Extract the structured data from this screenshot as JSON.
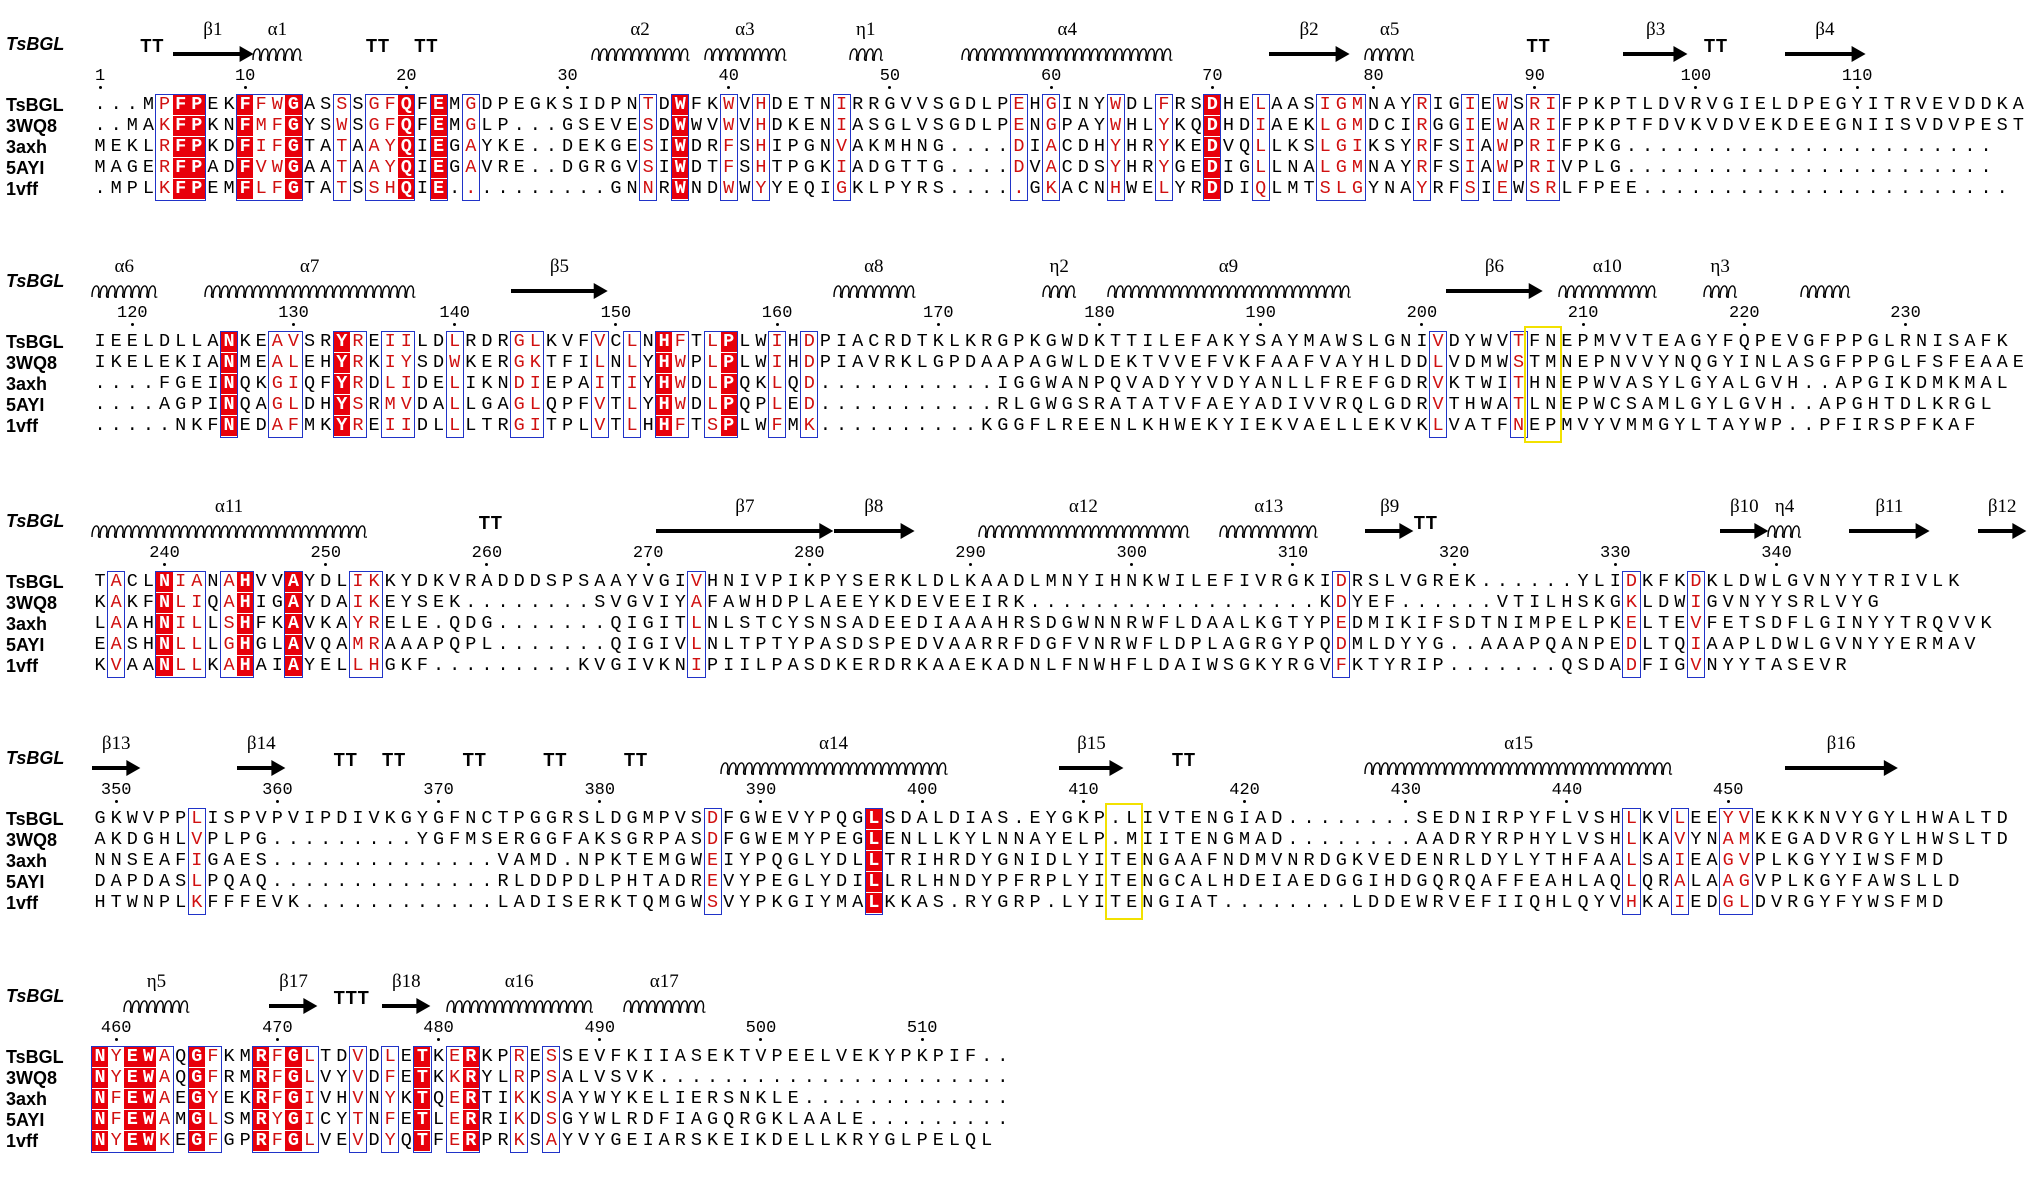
{
  "protein_label": "TsBGL",
  "blocks": [
    {
      "start": 0,
      "numbers": [
        1,
        10,
        20,
        30,
        40,
        50,
        60,
        70,
        80,
        90,
        100,
        110
      ],
      "sequences": [
        {
          "name": "TsBGL",
          "seq": "...MPFPEKFFWGASSSGFQFEMGDPEGKSIDPNTDWFKWVHDETNIRRGVVSGDLPEHGINYWDLFRSDHELAASIGMNAYRIGIEWSRIFPKPTLDVRVGIELDPEGYITRVEVDDKA"
        },
        {
          "name": "3WQ8",
          "seq": "..MAKFPKNFMFGYSWSGFQFEMGLP...GSEVESDWWVWVHDKENIASGLVSGDLPENGPAYWHLYKQDHDIAEKLGMDCIRGGIEWARIFPKPTFDVKVDVEKDEEGNIISVDVPEST"
        },
        {
          "name": "3axh",
          "seq": "MEKLRFPKDFIFGTATAAYQIEGAYKE..DEKGESIWDRFSHIPGNVAKMHNG....DIACDHYHRYKEDVQLLKSLGIKSYRFSIAWPRIFPKG......................."
        },
        {
          "name": "5AYI",
          "seq": "MAGERFPADFVWGAATAAYQIEGAVRE..DGRGVSIWDTFSHTPGKIADGTTG....DVACDSYHRYGEDIGLLNALGMNAYRFSIAWPRIVPLG......................."
        },
        {
          "name": "1vff",
          "seq": ".MPLKFPEMFLFGTATSSHQIE..........GNNRWNDWWYYEQIGKLPYRS.....GKACNHWELYRDDIQLMTSLGYNAYRFSIEWSRLFPEE......................."
        }
      ],
      "ss": [
        {
          "type": "TT",
          "label": "TT",
          "pos": 3
        },
        {
          "type": "arrow",
          "label": "β1",
          "start": 5,
          "end": 9
        },
        {
          "type": "helix",
          "label": "α1",
          "start": 10,
          "end": 12
        },
        {
          "type": "TT",
          "label": "TT",
          "pos": 17
        },
        {
          "type": "TT",
          "label": "TT",
          "pos": 20
        },
        {
          "type": "helix",
          "label": "α2",
          "start": 31,
          "end": 36
        },
        {
          "type": "helix",
          "label": "α3",
          "start": 38,
          "end": 42
        },
        {
          "type": "helix",
          "label": "η1",
          "start": 47,
          "end": 48
        },
        {
          "type": "helix",
          "label": "α4",
          "start": 54,
          "end": 66
        },
        {
          "type": "arrow",
          "label": "β2",
          "start": 73,
          "end": 77
        },
        {
          "type": "helix",
          "label": "α5",
          "start": 79,
          "end": 81
        },
        {
          "type": "TT",
          "label": "TT",
          "pos": 89
        },
        {
          "type": "arrow",
          "label": "β3",
          "start": 95,
          "end": 98
        },
        {
          "type": "TT",
          "label": "TT",
          "pos": 100
        },
        {
          "type": "arrow",
          "label": "β4",
          "start": 105,
          "end": 109
        }
      ],
      "highlights": []
    },
    {
      "start": 117,
      "numbers": [
        120,
        130,
        140,
        150,
        160,
        170,
        180,
        190,
        200,
        210,
        220,
        230
      ],
      "sequences": [
        {
          "name": "TsBGL",
          "seq": "IEELDLLANKEAVSRYREIILDLRDRGLKVFVCLNHFTLPLWIHDPIACRDTKLKRGPKGWDKTTILEFAKYSAYMAWSLGNIVDYWVTFNEPMVVTEAGYFQPEVGFPPGLRNISAFK"
        },
        {
          "name": "3WQ8",
          "seq": "IKELEKIANMEALEHYRKIYSDWKERGKTFILNLYHWPLPLWIHDPIAVRKLGPDAAPAGWLDEKTVVEFVKFAAFVAYHLDDLVDMWSTMNEPNVVYNQGYINLASGFPPGLFSFEAAE"
        },
        {
          "name": "3axh",
          "seq": "....FGEINQKGIQFYRDLIDELIKNDIEPAITIYHWDLPQKLQD...........IGGWANPQVADYYVDYANLLFREFGDRVKTWITHNEPWVASYLGYALGVH..APGIKDMKMAL"
        },
        {
          "name": "5AYI",
          "seq": "....AGPINQAGLDHYSRMVDALLGAGLQPFVTLYHWDLPQPLED...........RLGWGSRATATVFAEYADIVVRQLGDRVTHWATLNEPWCSAMLGYLGVH..APGHTDLKRGL"
        },
        {
          "name": "1vff",
          "seq": ".....NKFNEDAFMKYREIIDLLLTRGITPLVTLHHFTSPLWFMK..........KGGFLREENLKHWEKYIEKVAELLEKVKLVATFNEPMVYVMMGYLTAYWP..PFIRSPFKAF"
        }
      ],
      "ss": [
        {
          "type": "helix",
          "label": "α6",
          "start": 0,
          "end": 3
        },
        {
          "type": "helix",
          "label": "α7",
          "start": 7,
          "end": 19
        },
        {
          "type": "arrow",
          "label": "β5",
          "start": 26,
          "end": 31
        },
        {
          "type": "helix",
          "label": "α8",
          "start": 46,
          "end": 50
        },
        {
          "type": "helix",
          "label": "η2",
          "start": 59,
          "end": 60
        },
        {
          "type": "helix",
          "label": "α9",
          "start": 63,
          "end": 77
        },
        {
          "type": "arrow",
          "label": "β6",
          "start": 84,
          "end": 89
        },
        {
          "type": "helix",
          "label": "α10",
          "start": 91,
          "end": 96
        },
        {
          "type": "helix",
          "label": "η3",
          "start": 100,
          "end": 101
        },
        {
          "type": "helix",
          "label": "",
          "start": 106,
          "end": 108
        }
      ],
      "highlights": [
        {
          "start": 89,
          "end": 90
        }
      ]
    },
    {
      "start": 235,
      "numbers": [
        240,
        250,
        260,
        270,
        280,
        290,
        300,
        310,
        320,
        330,
        340
      ],
      "sequences": [
        {
          "name": "TsBGL",
          "seq": "TACLNIANAHVVAYDLIKKYDKVRADDDSPSAAYVGIVHNIVPIKPYSERKLDLKAADLMNYIHNKWILEFIVRGKIDRSLVGREK......YLIDKFKDKLDWLGVNYYTRIVLK"
        },
        {
          "name": "3WQ8",
          "seq": "KAKFNLIQAHIGAYDAIKEYSEK........SVGVIYAFAWHDPLAEEYKDEVEEIRK..................KDYEF......VTILHSKGKLDWIGVNYYSRLVYG"
        },
        {
          "name": "3axh",
          "seq": "LAAHNILLSHFKAVKAYRELE.QDG.......QIGITLNLSTCYSNSADEEDIAAAHRSDGWNNRWFLDAALKGTYPEDMIKIFSDTNIMPELPKELTEVFETSDFLGINYYTRQVVK"
        },
        {
          "name": "5AYI",
          "seq": "EASHNLLLGHGLAVQAMRAAAPQPL.......QIGIVLNLTPTYPASDSPEDVAARRFDGFVNRWFLDPLAGRGYPQDMLDYYG..AAAPQANPEDLTQIAAPLDWLGVNYYERMAV"
        },
        {
          "name": "1vff",
          "seq": "KVAANLLKAHAIAYELLHGKF.........KVGIVKNIPIILPASDKERDRKAAEKADNLFNWHFLDAIWSGKYRGVFKTYRIP.......QSDADFIGVNYYTASEVR"
        }
      ],
      "ss": [
        {
          "type": "helix",
          "label": "α11",
          "start": 0,
          "end": 16
        },
        {
          "type": "TT",
          "label": "TT",
          "pos": 24
        },
        {
          "type": "arrow",
          "label": "β7",
          "start": 35,
          "end": 45
        },
        {
          "type": "arrow",
          "label": "β8",
          "start": 46,
          "end": 50
        },
        {
          "type": "helix",
          "label": "α12",
          "start": 55,
          "end": 67
        },
        {
          "type": "helix",
          "label": "α13",
          "start": 70,
          "end": 75
        },
        {
          "type": "arrow",
          "label": "β9",
          "start": 79,
          "end": 81
        },
        {
          "type": "TT",
          "label": "TT",
          "pos": 82
        },
        {
          "type": "arrow",
          "label": "β10",
          "start": 101,
          "end": 103
        },
        {
          "type": "helix",
          "label": "η4",
          "start": 104,
          "end": 105
        },
        {
          "type": "arrow",
          "label": "β11",
          "start": 109,
          "end": 113
        },
        {
          "type": "arrow",
          "label": "β12",
          "start": 117,
          "end": 119
        }
      ],
      "highlights": []
    },
    {
      "start": 348,
      "numbers": [
        350,
        360,
        370,
        380,
        390,
        400,
        410,
        420,
        430,
        440,
        450
      ],
      "sequences": [
        {
          "name": "TsBGL",
          "seq": "GKWVPPLISPVPVIPDIVKGYGFNCTPGGRSLDGMPVSDFGWEVYPQGLSDALDIAS.EYGKP.LIVTENGIAD........SEDNIRPYFLVSHLKVLEEYVEKKKNVYGYLHWALTD"
        },
        {
          "name": "3WQ8",
          "seq": "AKDGHLVPLPG.........YGFMSERGGFAKSGRPASDFGWEMYPEGLENLLKYLNNAYELP.MIITENGMAD........AADRYRPHYLVSHLKAVYNAMKEGADVRGYLHWSLTD"
        },
        {
          "name": "3axh",
          "seq": "NNSEAFIGAES..............VAMD.NPKTEMGWEIYPQGLYDLLTRIHRDYGNIDLYITENGAAFNDMVNRDGKVEDENRLDYLYTHFAALSAIEAGVPLKGYYIWSFMD"
        },
        {
          "name": "5AYI",
          "seq": "DAPDASLPQAQ..............RLDDPDLPHTADREVYPEGLYDILLRLHNDYPFRPLYITENGCALHDEIAEDGGIHDGQRQAFFEAHLAQLQRALAAGVPLKGYFAWSLLD"
        },
        {
          "name": "1vff",
          "seq": "HTWNPLKFFFEVK............LADISERKTQMGWSVYPKGIYMALKKAS.RYGRP.LYITENGIAT........LDDEWRVEFIIQHLQYVHKAIEDGLDVRGYFYWSFMD"
        }
      ],
      "ss": [
        {
          "type": "arrow",
          "label": "β13",
          "start": 0,
          "end": 2
        },
        {
          "type": "arrow",
          "label": "β14",
          "start": 9,
          "end": 11
        },
        {
          "type": "TT",
          "label": "TT",
          "pos": 15
        },
        {
          "type": "TT",
          "label": "TT",
          "pos": 18
        },
        {
          "type": "TT",
          "label": "TT",
          "pos": 23
        },
        {
          "type": "TT",
          "label": "TT",
          "pos": 28
        },
        {
          "type": "TT",
          "label": "TT",
          "pos": 33
        },
        {
          "type": "helix",
          "label": "α14",
          "start": 39,
          "end": 52
        },
        {
          "type": "arrow",
          "label": "β15",
          "start": 60,
          "end": 63
        },
        {
          "type": "TT",
          "label": "TT",
          "pos": 67
        },
        {
          "type": "helix",
          "label": "α15",
          "start": 79,
          "end": 97
        },
        {
          "type": "arrow",
          "label": "β16",
          "start": 105,
          "end": 111
        }
      ],
      "highlights": [
        {
          "start": 63,
          "end": 64
        }
      ]
    },
    {
      "start": 458,
      "numbers": [
        460,
        470,
        480,
        490,
        500,
        510
      ],
      "sequences": [
        {
          "name": "TsBGL",
          "seq": "NYEWAQGFKMRFGLTDVDLETKERKPRESSEVFKIIASEKTVPEELVEKYPKPIF.."
        },
        {
          "name": "3WQ8",
          "seq": "NYEWAQGFRMRFGLVYVDFETKKRYLRPSALVSVK......................"
        },
        {
          "name": "3axh",
          "seq": "NFEWAEGYEKRFGIVHVNYKTQERTIKKSAYWYKELIERSNKLE............."
        },
        {
          "name": "5AYI",
          "seq": "NFEWAMGLSMRYGICYTNFETLERRIKDSGYWLRDFIAGQRGKLAALE........."
        },
        {
          "name": "1vff",
          "seq": "NYEWKEGFGPRFGLVEVDYQTFERPRKSAYVYGEIARSKEIKDELLKRYGLPELQL"
        }
      ],
      "ss": [
        {
          "type": "helix",
          "label": "η5",
          "start": 2,
          "end": 5
        },
        {
          "type": "arrow",
          "label": "β17",
          "start": 11,
          "end": 13
        },
        {
          "type": "TT",
          "label": "TTT",
          "pos": 15
        },
        {
          "type": "arrow",
          "label": "β18",
          "start": 18,
          "end": 20
        },
        {
          "type": "helix",
          "label": "α16",
          "start": 22,
          "end": 30
        },
        {
          "type": "helix",
          "label": "α17",
          "start": 33,
          "end": 37
        }
      ],
      "highlights": []
    }
  ],
  "colors": {
    "identical_bg": "#e8000b",
    "identical_text": "#ffffff",
    "similar_text": "#d01010",
    "box_border": "#2033c8",
    "highlight_box": "#f2e100"
  }
}
